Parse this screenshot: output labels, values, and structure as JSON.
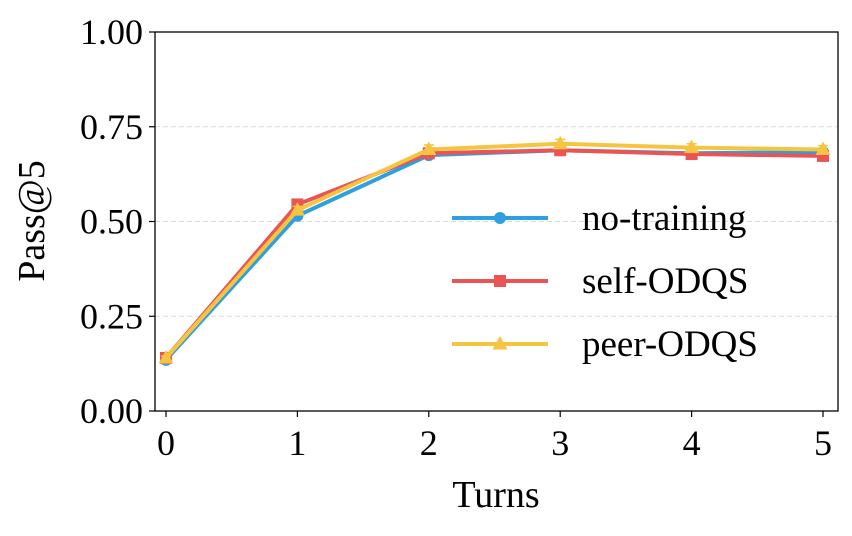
{
  "chart_data": {
    "type": "line",
    "title": "",
    "xlabel": "Turns",
    "ylabel": "Pass@5",
    "x": [
      0,
      1,
      2,
      3,
      4,
      5
    ],
    "xlim": [
      -0.08,
      5.12
    ],
    "ylim": [
      0,
      1
    ],
    "xticks": [
      "0",
      "1",
      "2",
      "3",
      "4",
      "5"
    ],
    "yticks": [
      "0.00",
      "0.25",
      "0.50",
      "0.75",
      "1.00"
    ],
    "grid": "horizontal dashed",
    "legend_placement": "center-right",
    "series": [
      {
        "name": "no-training",
        "color": "#2e9fdf",
        "marker": "circle",
        "values": [
          0.135,
          0.515,
          0.675,
          0.688,
          0.68,
          0.683
        ],
        "error": [
          0.005,
          0.008,
          0.008,
          0.008,
          0.008,
          0.008
        ]
      },
      {
        "name": "self-ODQS",
        "color": "#ea5455",
        "marker": "square",
        "values": [
          0.14,
          0.545,
          0.68,
          0.688,
          0.678,
          0.673
        ],
        "error": [
          0.005,
          0.008,
          0.008,
          0.008,
          0.008,
          0.008
        ]
      },
      {
        "name": "peer-ODQS",
        "color": "#f5c542",
        "marker": "triangle",
        "values": [
          0.14,
          0.53,
          0.69,
          0.705,
          0.695,
          0.69
        ],
        "error": [
          0.005,
          0.01,
          0.012,
          0.012,
          0.01,
          0.01
        ]
      }
    ]
  }
}
